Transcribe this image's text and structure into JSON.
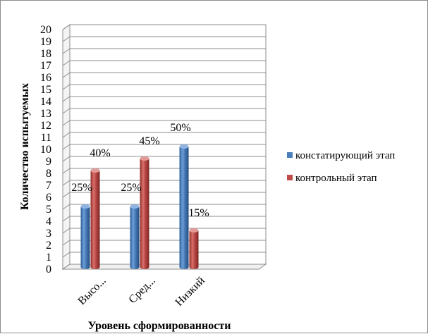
{
  "chart_data": {
    "type": "bar",
    "categories": [
      "Высо...",
      "Сред...",
      "Низкий"
    ],
    "series": [
      {
        "name": "констатирующий этап",
        "values": [
          5,
          5,
          10
        ],
        "labels": [
          "25%",
          "25%",
          "50%"
        ],
        "color": "#4a7ebb"
      },
      {
        "name": "контрольный этап",
        "values": [
          8,
          9,
          3
        ],
        "labels": [
          "40%",
          "45%",
          "15%"
        ],
        "color": "#be4b48"
      }
    ],
    "xlabel": "Уровень сформированности",
    "ylabel": "Количество испытуемых",
    "ylim": [
      0,
      20
    ],
    "yticks": [
      "0",
      "1",
      "2",
      "3",
      "4",
      "5",
      "6",
      "7",
      "8",
      "9",
      "10",
      "11",
      "12",
      "13",
      "14",
      "15",
      "16",
      "17",
      "18",
      "19",
      "20"
    ],
    "grid": true,
    "legend": "right",
    "style": "3d-cylinder"
  }
}
